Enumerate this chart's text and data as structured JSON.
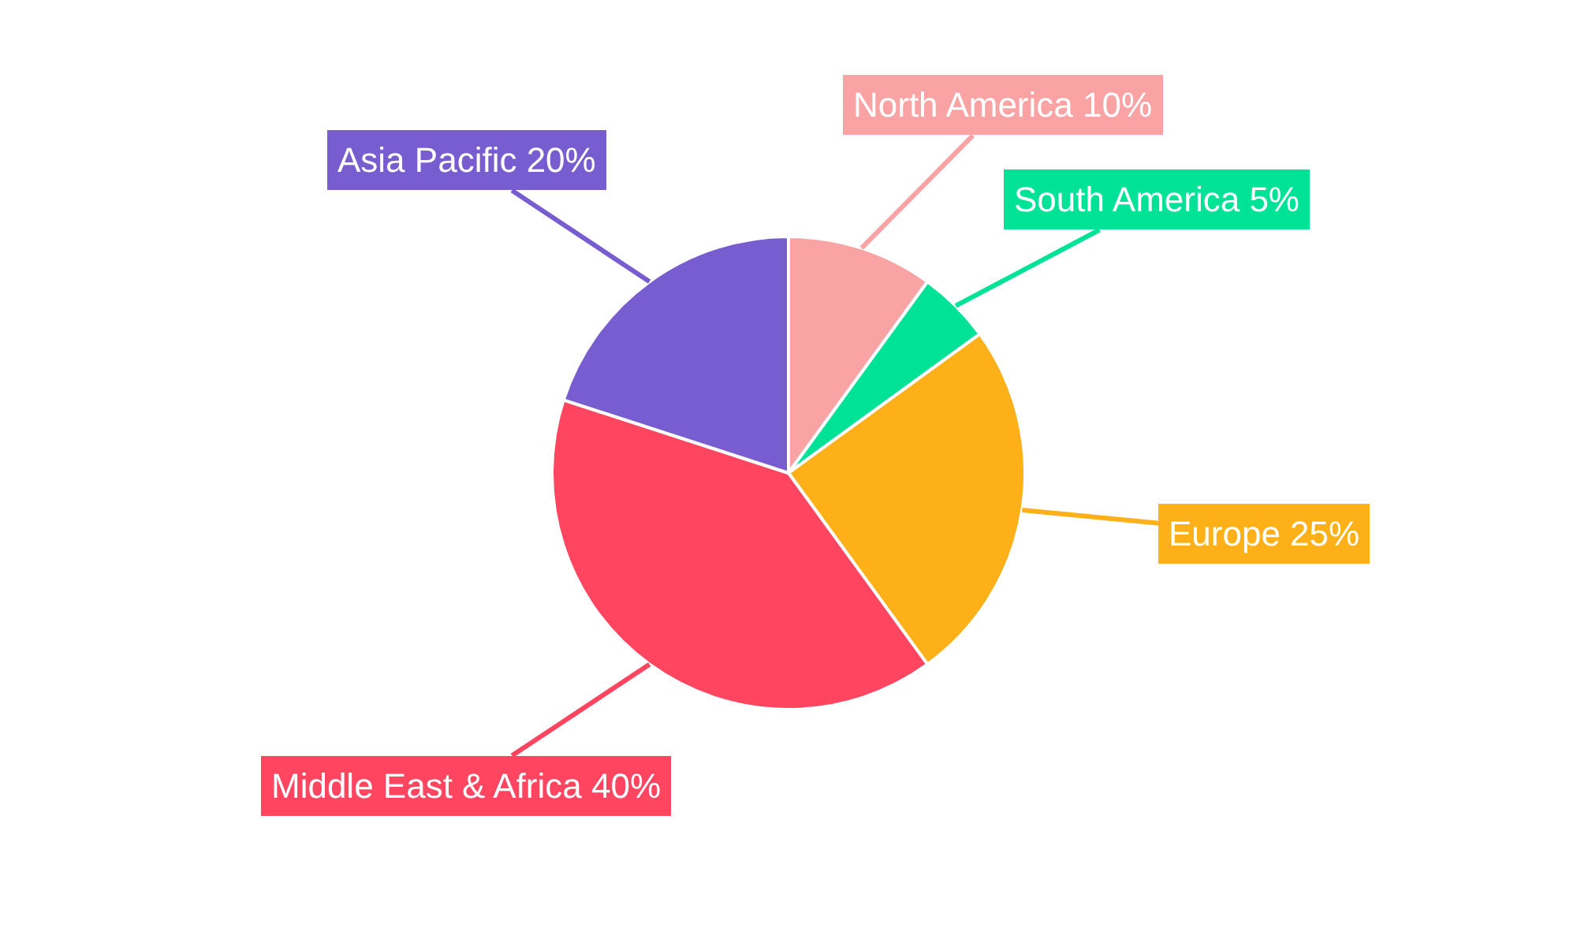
{
  "chart_data": {
    "type": "pie",
    "categories": [
      "North America",
      "South America",
      "Europe",
      "Middle East & Africa",
      "Asia Pacific"
    ],
    "values": [
      10,
      5,
      25,
      40,
      20
    ],
    "value_labels": [
      "10%",
      "5%",
      "25%",
      "40%",
      "20%"
    ],
    "colors": [
      "#f9a3a4",
      "#00e396",
      "#feb019",
      "#ff4560",
      "#775dd0"
    ],
    "legend": false
  }
}
